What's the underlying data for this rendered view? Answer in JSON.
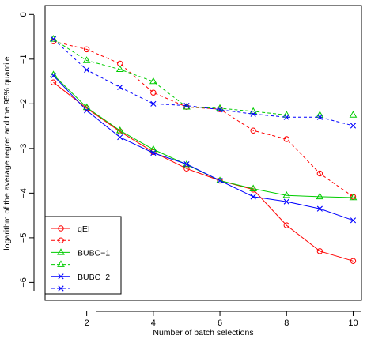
{
  "chart_data": {
    "type": "line",
    "title": "",
    "xlabel": "Number of batch selections",
    "ylabel": "logarithm of the average regret and the 95% quantile",
    "xlim": [
      0.75,
      10.25
    ],
    "ylim": [
      -6.4,
      0.2
    ],
    "x_ticks": [
      2,
      4,
      6,
      8,
      10
    ],
    "y_ticks": [
      0,
      -1,
      -2,
      -3,
      -4,
      -5,
      -6
    ],
    "x_tick_labels": [
      "2",
      "4",
      "6",
      "8",
      "10"
    ],
    "y_tick_labels": [
      "0",
      "−1",
      "−2",
      "−3",
      "−4",
      "−5",
      "−6"
    ],
    "grid": false,
    "legend_position": "bottom-left",
    "x": [
      1,
      2,
      3,
      4,
      5,
      6,
      7,
      8,
      9,
      10
    ],
    "series": [
      {
        "name": "qEI",
        "style": "solid",
        "marker": "circle",
        "color": "#ff0000",
        "values": [
          -1.52,
          -2.1,
          -2.62,
          -3.08,
          -3.45,
          -3.72,
          -3.92,
          -4.72,
          -5.3,
          -5.52
        ]
      },
      {
        "name": "",
        "style": "dashed",
        "marker": "circle",
        "color": "#ff0000",
        "values": [
          -0.6,
          -0.78,
          -1.1,
          -1.75,
          -2.07,
          -2.12,
          -2.6,
          -2.79,
          -3.56,
          -4.08
        ]
      },
      {
        "name": "BUBC−1",
        "style": "solid",
        "marker": "triangle",
        "color": "#00cc00",
        "values": [
          -1.35,
          -2.08,
          -2.6,
          -3.02,
          -3.36,
          -3.72,
          -3.9,
          -4.05,
          -4.08,
          -4.1
        ]
      },
      {
        "name": "",
        "style": "dashed",
        "marker": "triangle",
        "color": "#00cc00",
        "values": [
          -0.55,
          -1.03,
          -1.23,
          -1.5,
          -2.07,
          -2.1,
          -2.17,
          -2.25,
          -2.25,
          -2.25
        ]
      },
      {
        "name": "BUBC−2",
        "style": "solid",
        "marker": "x",
        "color": "#0000ff",
        "values": [
          -1.37,
          -2.15,
          -2.75,
          -3.1,
          -3.35,
          -3.72,
          -4.08,
          -4.19,
          -4.35,
          -4.61
        ]
      },
      {
        "name": "",
        "style": "dashed",
        "marker": "x",
        "color": "#0000ff",
        "values": [
          -0.55,
          -1.24,
          -1.63,
          -2.0,
          -2.04,
          -2.13,
          -2.23,
          -2.3,
          -2.3,
          -2.49
        ]
      }
    ]
  }
}
